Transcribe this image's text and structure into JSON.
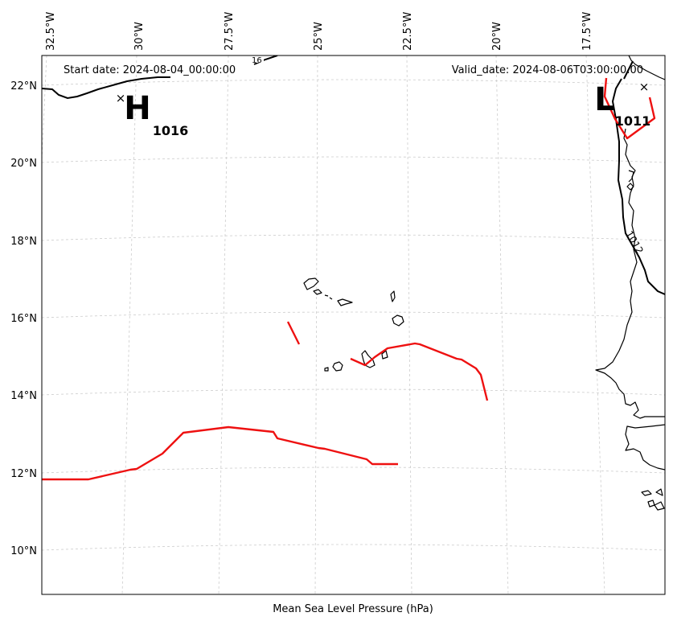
{
  "header": {
    "start_date": "Start date: 2024-08-04_00:00:00",
    "valid_date": "Valid_date: 2024-08-06T03:00:00.00"
  },
  "footer": {
    "caption": "Mean Sea Level Pressure (hPa)"
  },
  "axes": {
    "lon_labels": [
      "32.5°W",
      "30°W",
      "27.5°W",
      "25°W",
      "22.5°W",
      "20°W",
      "17.5°W"
    ],
    "lat_labels": [
      "22°N",
      "20°N",
      "18°N",
      "16°N",
      "14°N",
      "12°N",
      "10°N"
    ]
  },
  "pressure_centers": {
    "high": {
      "letter": "H",
      "value": "1016",
      "marker": "×"
    },
    "low": {
      "letter": "L",
      "value": "1011",
      "marker": "×"
    }
  },
  "contour_labels": {
    "isobar_1012": "1012",
    "isobar_top_partial": "16"
  },
  "colors": {
    "coastline": "#000000",
    "isobar": "#000000",
    "front_line": "#ee1111",
    "gridline": "#cccccc",
    "frame": "#000000"
  }
}
